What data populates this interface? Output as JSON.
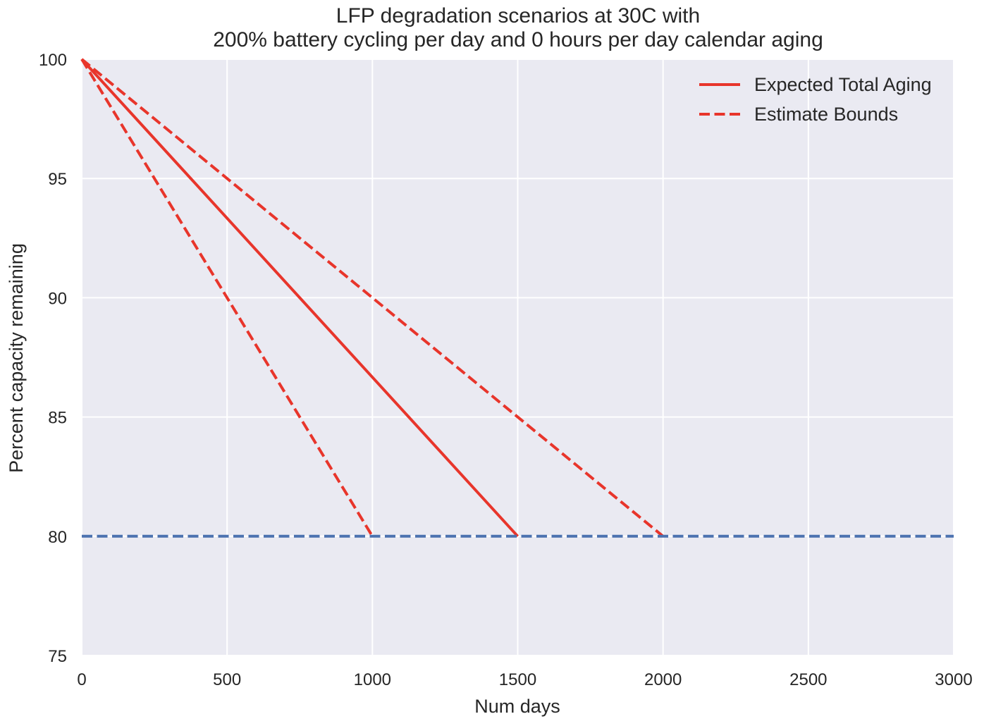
{
  "chart_data": {
    "type": "line",
    "title": [
      "LFP degradation scenarios at 30C with",
      "200% battery cycling per day and 0 hours per day calendar aging"
    ],
    "xlabel": "Num days",
    "ylabel": "Percent capacity remaining",
    "xlim": [
      0,
      3000
    ],
    "ylim": [
      75,
      100
    ],
    "xticks": [
      0,
      500,
      1000,
      1500,
      2000,
      2500,
      3000
    ],
    "yticks": [
      75,
      80,
      85,
      90,
      95,
      100
    ],
    "grid": true,
    "background": "#EAEAF2",
    "legend_position": "top-right",
    "series": [
      {
        "name": "Expected Total Aging",
        "style": "solid",
        "color": "#E8352B",
        "x": [
          0,
          1500
        ],
        "y": [
          100,
          80
        ]
      },
      {
        "name": "Estimate Bounds",
        "style": "dashed",
        "color": "#E8352B",
        "x": [
          0,
          1000
        ],
        "y": [
          100,
          80
        ]
      },
      {
        "style": "dashed",
        "color": "#E8352B",
        "x": [
          0,
          2000
        ],
        "y": [
          100,
          80
        ]
      },
      {
        "style": "dashed",
        "color": "#4C72B0",
        "x": [
          0,
          3000
        ],
        "y": [
          80,
          80
        ]
      }
    ],
    "legend": [
      {
        "label": "Expected Total Aging",
        "style": "solid",
        "color": "#E8352B"
      },
      {
        "label": "Estimate Bounds",
        "style": "dashed",
        "color": "#E8352B"
      }
    ]
  }
}
